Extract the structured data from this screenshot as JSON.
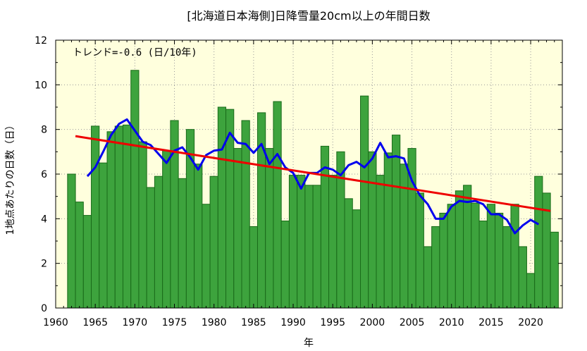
{
  "chart_data": {
    "type": "bar",
    "title": "[北海道日本海側]日降雪量20cm以上の年間日数",
    "xlabel": "年",
    "ylabel": "1地点あたりの日数（日）",
    "annotation": "トレンド=-0.6 (日/10年)",
    "xlim": [
      1960,
      2024
    ],
    "ylim": [
      0,
      12
    ],
    "xticks": [
      1960,
      1965,
      1970,
      1975,
      1980,
      1985,
      1990,
      1995,
      2000,
      2005,
      2010,
      2015,
      2020
    ],
    "yticks": [
      0,
      2,
      4,
      6,
      8,
      10,
      12
    ],
    "grid": true,
    "colors": {
      "plot_background": "#ffffdd",
      "bar_fill": "#3da33d",
      "bar_edge": "#1a6b1a",
      "moving_average": "#0000ee",
      "trend": "#ee0000",
      "grid": "#999999"
    },
    "years": [
      1962,
      1963,
      1964,
      1965,
      1966,
      1967,
      1968,
      1969,
      1970,
      1971,
      1972,
      1973,
      1974,
      1975,
      1976,
      1977,
      1978,
      1979,
      1980,
      1981,
      1982,
      1983,
      1984,
      1985,
      1986,
      1987,
      1988,
      1989,
      1990,
      1991,
      1992,
      1993,
      1994,
      1995,
      1996,
      1997,
      1998,
      1999,
      2000,
      2001,
      2002,
      2003,
      2004,
      2005,
      2006,
      2007,
      2008,
      2009,
      2010,
      2011,
      2012,
      2013,
      2014,
      2015,
      2016,
      2017,
      2018,
      2019,
      2020,
      2021,
      2022,
      2023
    ],
    "values": [
      6.0,
      4.75,
      4.15,
      8.15,
      6.5,
      7.9,
      8.15,
      8.2,
      10.65,
      7.45,
      5.4,
      5.9,
      7.05,
      8.4,
      5.8,
      8.0,
      6.45,
      4.65,
      5.9,
      9.0,
      8.9,
      7.15,
      8.4,
      3.65,
      8.75,
      7.15,
      9.25,
      3.9,
      5.95,
      5.95,
      5.5,
      5.5,
      7.25,
      5.95,
      7.0,
      4.9,
      4.4,
      9.5,
      7.0,
      5.95,
      6.95,
      7.75,
      6.45,
      7.15,
      5.15,
      2.75,
      3.65,
      4.25,
      4.65,
      5.25,
      5.5,
      4.7,
      3.9,
      4.65,
      4.25,
      3.65,
      4.65,
      2.75,
      1.55,
      5.9,
      5.15,
      3.4
    ],
    "moving_average": {
      "years": [
        1964,
        1965,
        1966,
        1967,
        1968,
        1969,
        1970,
        1971,
        1972,
        1973,
        1974,
        1975,
        1976,
        1977,
        1978,
        1979,
        1980,
        1981,
        1982,
        1983,
        1984,
        1985,
        1986,
        1987,
        1988,
        1989,
        1990,
        1991,
        1992,
        1993,
        1994,
        1995,
        1996,
        1997,
        1998,
        1999,
        2000,
        2001,
        2002,
        2003,
        2004,
        2005,
        2006,
        2007,
        2008,
        2009,
        2010,
        2011,
        2012,
        2013,
        2014,
        2015,
        2016,
        2017,
        2018,
        2019,
        2020,
        2021
      ],
      "values": [
        5.9,
        6.3,
        7.0,
        7.75,
        8.25,
        8.45,
        7.95,
        7.45,
        7.3,
        6.9,
        6.5,
        7.05,
        7.2,
        6.75,
        6.2,
        6.85,
        7.05,
        7.1,
        7.85,
        7.4,
        7.35,
        6.95,
        7.35,
        6.45,
        6.9,
        6.3,
        6.05,
        5.35,
        6.05,
        6.05,
        6.3,
        6.2,
        5.95,
        6.4,
        6.55,
        6.3,
        6.7,
        7.4,
        6.75,
        6.8,
        6.7,
        5.7,
        5.05,
        4.65,
        4.0,
        4.0,
        4.55,
        4.8,
        4.75,
        4.8,
        4.65,
        4.2,
        4.2,
        3.95,
        3.35,
        3.7,
        3.95,
        3.75
      ]
    },
    "trend": {
      "x": [
        1962.5,
        2022.5
      ],
      "y": [
        7.7,
        4.35
      ]
    }
  }
}
